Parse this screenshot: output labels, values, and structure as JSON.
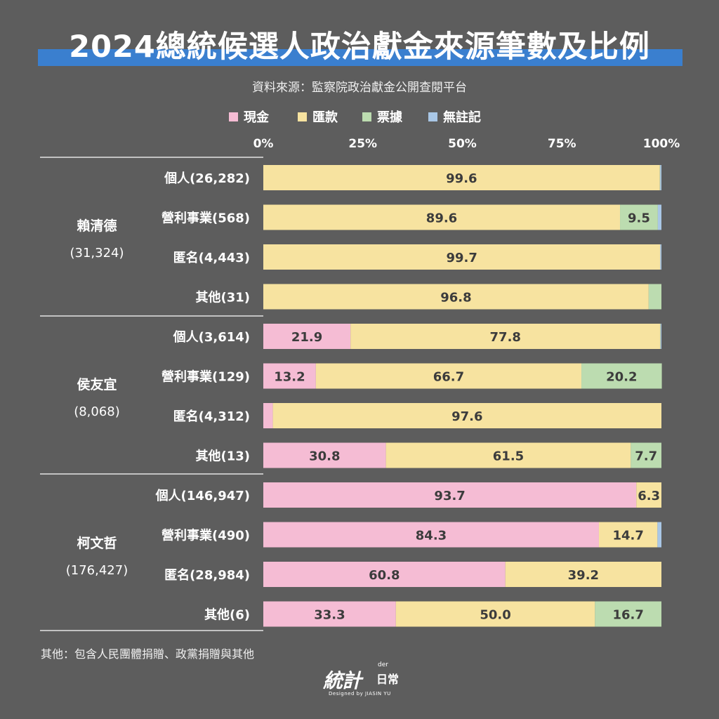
{
  "title": "2024總統候選人政治獻金來源筆數及比例",
  "source": "資料來源：監察院政治獻金公開查閱平台",
  "footnote": "其他：包含人民團體捐贈、政黨捐贈與其他",
  "logo": {
    "main": "統計",
    "sub": "日常",
    "der": "der",
    "credit": "Designed by JIASIN YU"
  },
  "colors": {
    "cash": "#f5bcd4",
    "transfer": "#f7e3a0",
    "bill": "#bcdcb0",
    "none": "#a9c7e6",
    "text_dark": "#3c3c3c"
  },
  "chart_data": {
    "type": "bar",
    "orientation": "horizontal",
    "stacked": true,
    "xlim": [
      0,
      100
    ],
    "xticks": [
      "0%",
      "25%",
      "50%",
      "75%",
      "100%"
    ],
    "legend": [
      {
        "name": "現金",
        "key": "cash"
      },
      {
        "name": "匯款",
        "key": "transfer"
      },
      {
        "name": "票據",
        "key": "bill"
      },
      {
        "name": "無註記",
        "key": "none"
      }
    ],
    "groups": [
      {
        "name": "賴清德",
        "total": "(31,324)",
        "rows": [
          {
            "label": "個人(26,282)",
            "values": [
              0.0,
              99.6,
              0.1,
              0.3
            ],
            "labels": [
              "",
              "99.6",
              "",
              ""
            ]
          },
          {
            "label": "營利事業(568)",
            "values": [
              0.0,
              89.6,
              9.5,
              0.9
            ],
            "labels": [
              "",
              "89.6",
              "9.5",
              ""
            ]
          },
          {
            "label": "匿名(4,443)",
            "values": [
              0.0,
              99.7,
              0.0,
              0.3
            ],
            "labels": [
              "",
              "99.7",
              "",
              ""
            ]
          },
          {
            "label": "其他(31)",
            "values": [
              0.0,
              96.8,
              3.2,
              0.0
            ],
            "labels": [
              "",
              "96.8",
              "",
              ""
            ]
          }
        ]
      },
      {
        "name": "侯友宜",
        "total": "(8,068)",
        "rows": [
          {
            "label": "個人(3,614)",
            "values": [
              21.9,
              77.8,
              0.1,
              0.2
            ],
            "labels": [
              "21.9",
              "77.8",
              "",
              ""
            ]
          },
          {
            "label": "營利事業(129)",
            "values": [
              13.2,
              66.7,
              20.2,
              0.0
            ],
            "labels": [
              "13.2",
              "66.7",
              "20.2",
              ""
            ]
          },
          {
            "label": "匿名(4,312)",
            "values": [
              2.4,
              97.6,
              0.0,
              0.0
            ],
            "labels": [
              "",
              "97.6",
              "",
              ""
            ]
          },
          {
            "label": "其他(13)",
            "values": [
              30.8,
              61.5,
              7.7,
              0.0
            ],
            "labels": [
              "30.8",
              "61.5",
              "7.7",
              ""
            ]
          }
        ]
      },
      {
        "name": "柯文哲",
        "total": "(176,427)",
        "rows": [
          {
            "label": "個人(146,947)",
            "values": [
              93.7,
              6.3,
              0.0,
              0.0
            ],
            "labels": [
              "93.7",
              "6.3",
              "",
              ""
            ]
          },
          {
            "label": "營利事業(490)",
            "values": [
              84.3,
              14.7,
              0.0,
              1.0
            ],
            "labels": [
              "84.3",
              "14.7",
              "",
              ""
            ]
          },
          {
            "label": "匿名(28,984)",
            "values": [
              60.8,
              39.2,
              0.0,
              0.0
            ],
            "labels": [
              "60.8",
              "39.2",
              "",
              ""
            ]
          },
          {
            "label": "其他(6)",
            "values": [
              33.3,
              50.0,
              16.7,
              0.0
            ],
            "labels": [
              "33.3",
              "50.0",
              "16.7",
              ""
            ]
          }
        ]
      }
    ]
  }
}
